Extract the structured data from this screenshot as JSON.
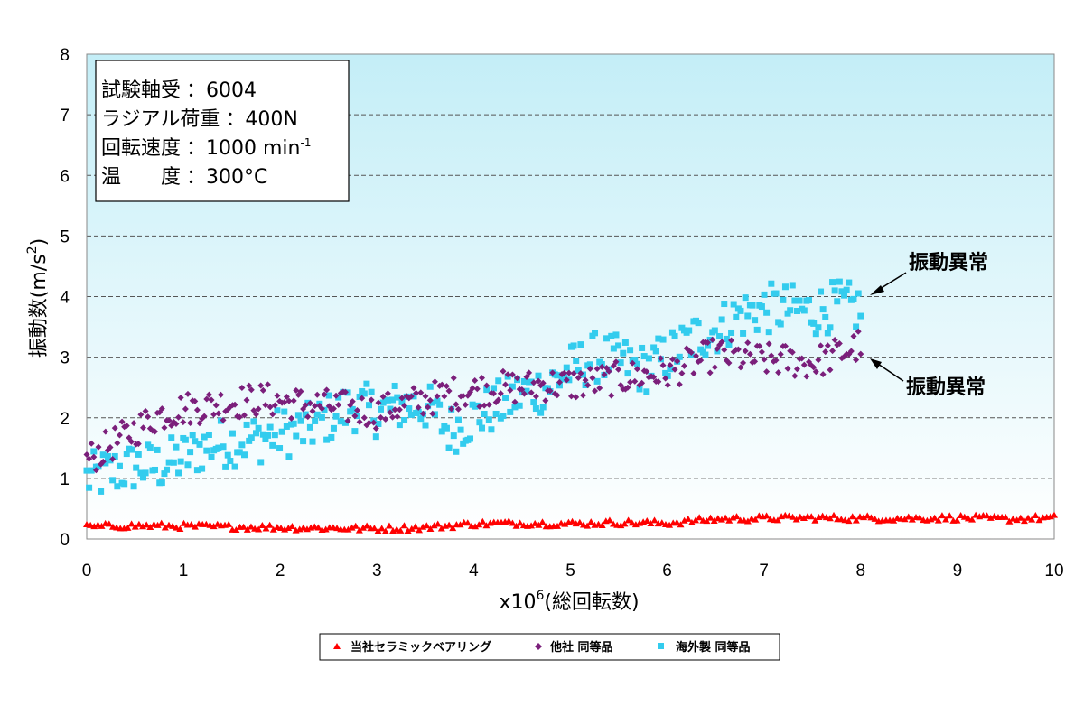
{
  "chart_data": {
    "type": "scatter",
    "xlabel_prefix": "x10",
    "xlabel_exp": "6",
    "xlabel_suffix": "(総回転数)",
    "ylabel": "振動数(m/s",
    "ylabel_exp": "2",
    "ylabel_close": ")",
    "xlim": [
      0,
      10
    ],
    "ylim": [
      0,
      8
    ],
    "x_ticks": [
      "0",
      "1",
      "2",
      "3",
      "4",
      "5",
      "6",
      "7",
      "8",
      "9",
      "10"
    ],
    "y_ticks": [
      "0",
      "1",
      "2",
      "3",
      "4",
      "5",
      "6",
      "7",
      "8"
    ],
    "grid": "horizontal dashed",
    "legend_position": "bottom",
    "info_box": {
      "line1_label": "試験軸受",
      "line1_value": "：6004",
      "line2_label": "ラジアル荷重",
      "line2_value": "：400N",
      "line3_label": "回転速度",
      "line3_value": "：1000 min",
      "line3_sup": "-1",
      "line4_label": "温　　度",
      "line4_value": "：300°C"
    },
    "annotations": [
      {
        "text": "振動異常",
        "series": "海外製 同等品",
        "x": 8.0,
        "y": 3.85
      },
      {
        "text": "振動異常",
        "series": "他社 同等品",
        "x": 8.0,
        "y": 3.15
      }
    ],
    "series": [
      {
        "name": "当社セラミックベアリング",
        "color": "#ff0000",
        "marker": "triangle",
        "x": [
          0.0,
          0.5,
          1.0,
          1.5,
          2.0,
          2.5,
          3.0,
          3.5,
          4.0,
          4.5,
          5.0,
          5.5,
          6.0,
          6.5,
          7.0,
          7.5,
          8.0,
          8.5,
          9.0,
          9.5,
          10.0
        ],
        "values": [
          0.2,
          0.22,
          0.21,
          0.2,
          0.19,
          0.18,
          0.17,
          0.19,
          0.25,
          0.26,
          0.25,
          0.27,
          0.26,
          0.33,
          0.34,
          0.35,
          0.34,
          0.34,
          0.35,
          0.33,
          0.35
        ]
      },
      {
        "name": "他社 同等品",
        "color": "#7b1f7b",
        "marker": "diamond",
        "x": [
          0.0,
          0.25,
          0.5,
          0.75,
          1.0,
          1.25,
          1.5,
          1.75,
          2.0,
          2.25,
          2.5,
          2.75,
          3.0,
          3.25,
          3.5,
          3.75,
          4.0,
          4.25,
          4.5,
          4.75,
          5.0,
          5.25,
          5.5,
          5.75,
          6.0,
          6.25,
          6.5,
          6.75,
          7.0,
          7.25,
          7.5,
          7.75,
          8.0
        ],
        "values": [
          1.3,
          1.55,
          1.8,
          2.05,
          2.15,
          2.2,
          2.25,
          2.3,
          2.28,
          2.22,
          2.2,
          2.15,
          2.1,
          2.2,
          2.3,
          2.4,
          2.45,
          2.5,
          2.5,
          2.55,
          2.55,
          2.6,
          2.65,
          2.7,
          2.75,
          2.9,
          3.05,
          3.0,
          2.95,
          2.95,
          2.9,
          3.05,
          3.2
        ]
      },
      {
        "name": "海外製 同等品",
        "color": "#33ccee",
        "marker": "square",
        "x": [
          0.0,
          0.25,
          0.5,
          0.75,
          1.0,
          1.25,
          1.5,
          1.75,
          2.0,
          2.25,
          2.5,
          2.75,
          3.0,
          3.25,
          3.5,
          3.75,
          4.0,
          4.25,
          4.5,
          4.75,
          5.0,
          5.25,
          5.5,
          5.75,
          6.0,
          6.25,
          6.5,
          6.75,
          7.0,
          7.25,
          7.5,
          7.75,
          8.0
        ],
        "values": [
          1.0,
          1.1,
          1.2,
          1.2,
          1.35,
          1.55,
          1.6,
          1.65,
          1.75,
          1.8,
          2.0,
          2.2,
          2.1,
          2.2,
          2.2,
          1.8,
          2.0,
          2.2,
          2.4,
          2.5,
          2.8,
          3.0,
          2.95,
          2.8,
          3.0,
          3.3,
          3.45,
          3.7,
          3.8,
          3.8,
          3.75,
          3.85,
          3.8
        ]
      }
    ]
  }
}
